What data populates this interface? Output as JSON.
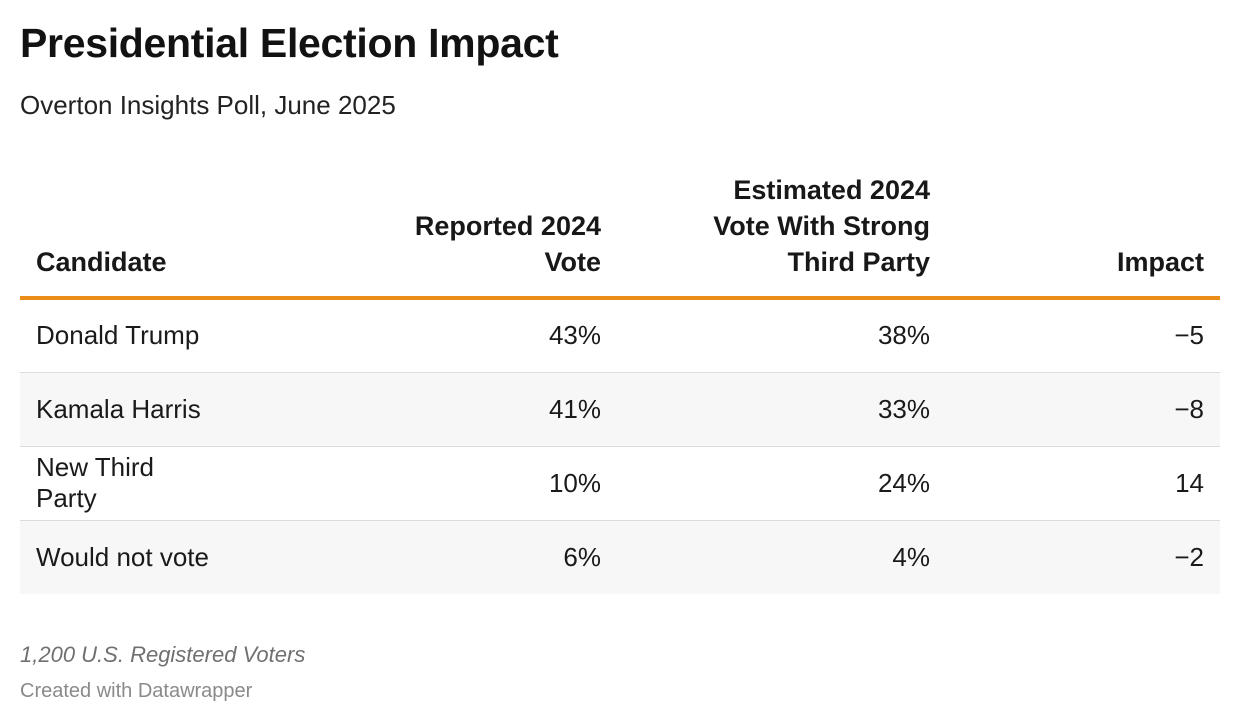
{
  "chart_data": {
    "type": "table",
    "title": "Presidential Election Impact",
    "subtitle": "Overton Insights Poll, June 2025",
    "columns": [
      {
        "lines": [
          "Candidate"
        ],
        "align": "left"
      },
      {
        "lines": [
          "Reported 2024",
          "Vote"
        ],
        "align": "right"
      },
      {
        "lines": [
          "Estimated 2024",
          "Vote With Strong",
          "Third Party"
        ],
        "align": "right"
      },
      {
        "lines": [
          "Impact"
        ],
        "align": "right"
      }
    ],
    "rows": [
      [
        "Donald Trump",
        "43%",
        "38%",
        "−5"
      ],
      [
        "Kamala Harris",
        "41%",
        "33%",
        "−8"
      ],
      [
        "New Third Party",
        "10%",
        "24%",
        "14"
      ],
      [
        "Would not vote",
        "6%",
        "4%",
        "−2"
      ]
    ],
    "values": {
      "reported_2024_vote": [
        43,
        41,
        10,
        6
      ],
      "estimated_2024_vote_with_strong_third_party": [
        38,
        33,
        24,
        4
      ],
      "impact": [
        -5,
        -8,
        14,
        -2
      ]
    },
    "note": "1,200 U.S. Registered Voters",
    "credit": "Created with Datawrapper",
    "colors": {
      "header_rule": "#ec8d1a",
      "striped_row": "#f7f7f7",
      "row_divider": "#dcdcdc"
    }
  }
}
